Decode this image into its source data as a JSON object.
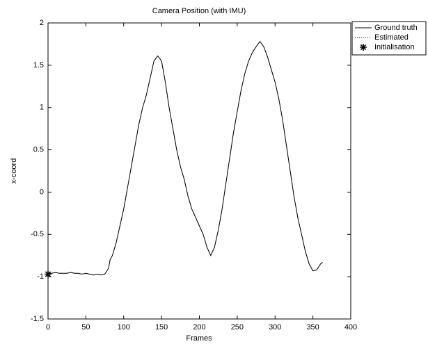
{
  "chart_data": {
    "type": "line",
    "title": "Camera Position (with IMU)",
    "x_label": "Frames",
    "y_label": "x-coord",
    "xlim": [
      0,
      400
    ],
    "xticks": [
      0,
      50,
      100,
      150,
      200,
      250,
      300,
      350,
      400
    ],
    "ylim": [
      -1.5,
      2
    ],
    "yticks": [
      -1.5,
      -1,
      -0.5,
      0,
      0.5,
      1,
      1.5,
      2
    ],
    "grid": false,
    "legend": "outside-top-right",
    "series": [
      {
        "name": "Ground truth",
        "color": "#000000",
        "style": "solid",
        "x": [
          0,
          5,
          10,
          15,
          20,
          25,
          30,
          35,
          40,
          45,
          50,
          55,
          60,
          65,
          70,
          75,
          80,
          82,
          85,
          90,
          95,
          100,
          105,
          110,
          115,
          120,
          125,
          130,
          135,
          140,
          145,
          150,
          155,
          160,
          165,
          170,
          175,
          180,
          185,
          190,
          195,
          200,
          205,
          210,
          215,
          220,
          225,
          230,
          235,
          240,
          245,
          250,
          255,
          260,
          265,
          270,
          275,
          280,
          285,
          290,
          295,
          300,
          305,
          310,
          315,
          320,
          325,
          330,
          335,
          340,
          345,
          350,
          355,
          360,
          363
        ],
        "values": [
          -0.96,
          -0.96,
          -0.95,
          -0.96,
          -0.96,
          -0.96,
          -0.95,
          -0.96,
          -0.96,
          -0.97,
          -0.96,
          -0.97,
          -0.98,
          -0.97,
          -0.98,
          -0.97,
          -0.9,
          -0.8,
          -0.75,
          -0.6,
          -0.4,
          -0.2,
          0.05,
          0.3,
          0.55,
          0.8,
          1.0,
          1.15,
          1.35,
          1.55,
          1.61,
          1.55,
          1.3,
          1.0,
          0.75,
          0.5,
          0.3,
          0.15,
          -0.05,
          -0.2,
          -0.3,
          -0.4,
          -0.5,
          -0.65,
          -0.75,
          -0.65,
          -0.45,
          -0.2,
          0.1,
          0.4,
          0.7,
          0.95,
          1.2,
          1.4,
          1.55,
          1.65,
          1.72,
          1.78,
          1.72,
          1.6,
          1.45,
          1.3,
          1.1,
          0.85,
          0.55,
          0.25,
          -0.05,
          -0.3,
          -0.5,
          -0.7,
          -0.85,
          -0.93,
          -0.92,
          -0.85,
          -0.83
        ]
      },
      {
        "name": "Estimated",
        "color": "#000000",
        "style": "dotted",
        "x": [
          0,
          5,
          10,
          15,
          20,
          25,
          30,
          35,
          40,
          45,
          50,
          55,
          60,
          65,
          70,
          75,
          80,
          82,
          85,
          90,
          95,
          100,
          105,
          110,
          115,
          120,
          125,
          130,
          135,
          140,
          145,
          150,
          155,
          160,
          165,
          170,
          175,
          180,
          185,
          190,
          195,
          200,
          205,
          210,
          215,
          220,
          225,
          230,
          235,
          240,
          245,
          250,
          255,
          260,
          265,
          270,
          275,
          280,
          285,
          290,
          295,
          300,
          305,
          310,
          315,
          320,
          325,
          330,
          335,
          340,
          345,
          350,
          355,
          360,
          363
        ],
        "values": [
          -0.96,
          -0.96,
          -0.95,
          -0.96,
          -0.96,
          -0.96,
          -0.95,
          -0.96,
          -0.96,
          -0.97,
          -0.96,
          -0.97,
          -0.98,
          -0.97,
          -0.98,
          -0.97,
          -0.9,
          -0.8,
          -0.75,
          -0.6,
          -0.4,
          -0.2,
          0.05,
          0.3,
          0.55,
          0.8,
          1.0,
          1.15,
          1.35,
          1.55,
          1.61,
          1.55,
          1.3,
          1.0,
          0.75,
          0.5,
          0.3,
          0.15,
          -0.05,
          -0.2,
          -0.3,
          -0.4,
          -0.5,
          -0.65,
          -0.75,
          -0.65,
          -0.45,
          -0.2,
          0.1,
          0.4,
          0.7,
          0.95,
          1.2,
          1.4,
          1.55,
          1.65,
          1.72,
          1.78,
          1.72,
          1.6,
          1.45,
          1.3,
          1.1,
          0.85,
          0.55,
          0.25,
          -0.05,
          -0.3,
          -0.5,
          -0.7,
          -0.85,
          -0.93,
          -0.92,
          -0.85,
          -0.83
        ]
      },
      {
        "name": "Initialisation",
        "color": "#000000",
        "style": "star",
        "x": [
          0
        ],
        "values": [
          -0.97
        ]
      }
    ]
  }
}
